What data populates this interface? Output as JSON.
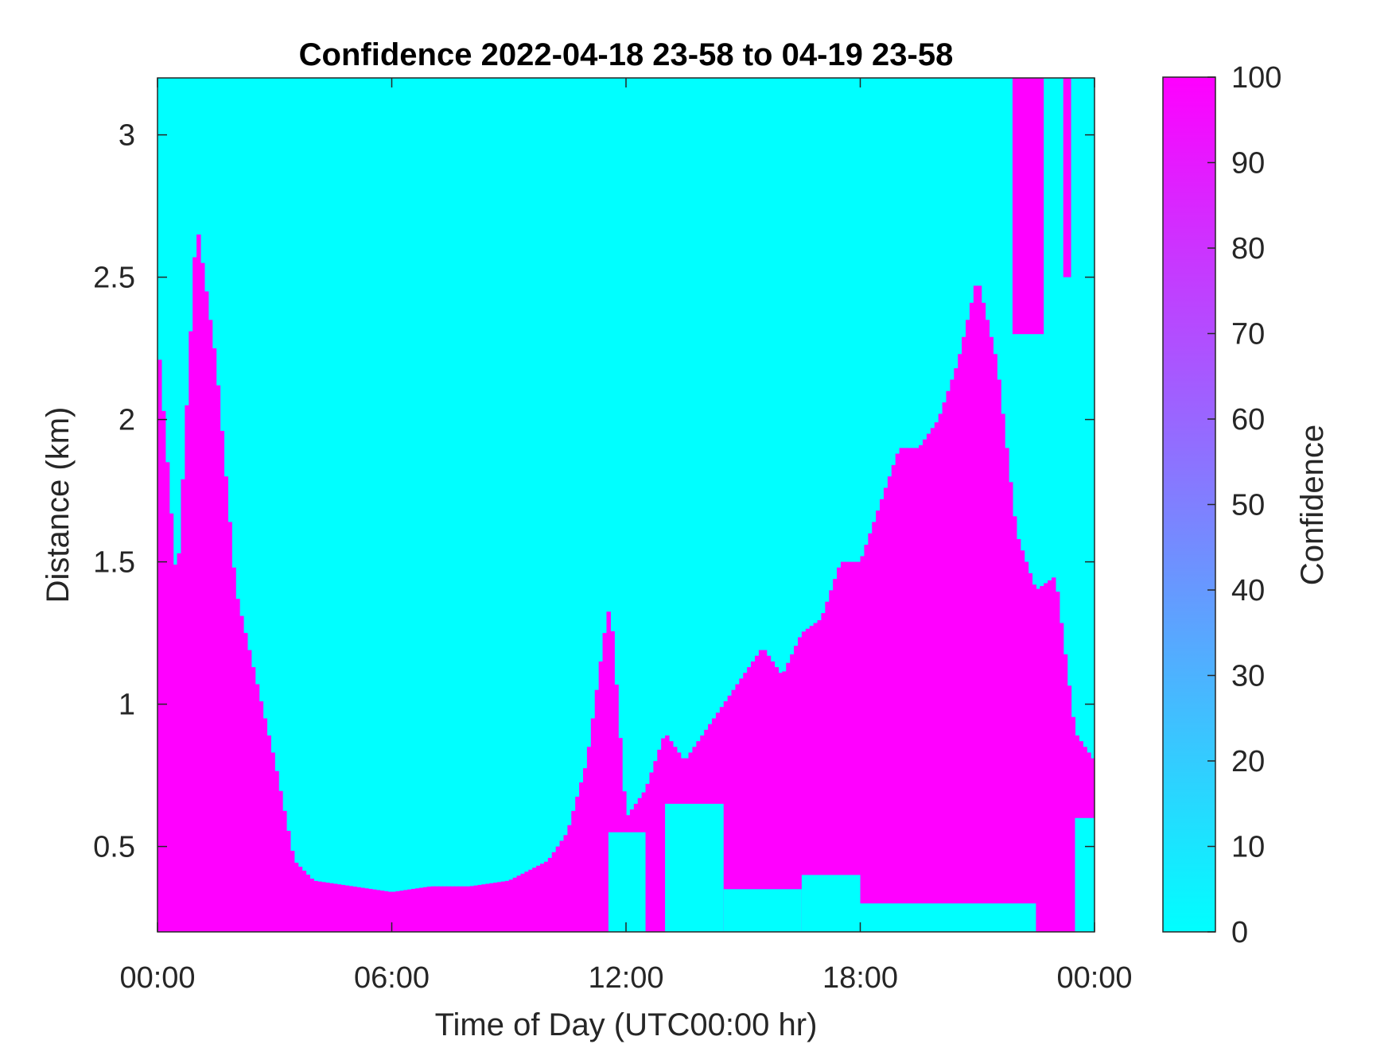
{
  "chart_data": {
    "type": "heatmap",
    "title": "Confidence 2022-04-18 23-58 to 04-19 23-58",
    "xlabel": "Time of Day (UTC00:00 hr)",
    "ylabel": "Distance (km)",
    "xlim": [
      0,
      24
    ],
    "ylim": [
      0.2,
      3.2
    ],
    "x_ticks": [
      {
        "value": 0,
        "label": "00:00"
      },
      {
        "value": 6,
        "label": "06:00"
      },
      {
        "value": 12,
        "label": "12:00"
      },
      {
        "value": 18,
        "label": "18:00"
      },
      {
        "value": 24,
        "label": "00:00"
      }
    ],
    "y_ticks": [
      {
        "value": 0.5,
        "label": "0.5"
      },
      {
        "value": 1,
        "label": "1"
      },
      {
        "value": 1.5,
        "label": "1.5"
      },
      {
        "value": 2,
        "label": "2"
      },
      {
        "value": 2.5,
        "label": "2.5"
      },
      {
        "value": 3,
        "label": "3"
      }
    ],
    "colorbar": {
      "label": "Confidence",
      "range": [
        0,
        100
      ],
      "ticks": [
        0,
        10,
        20,
        30,
        40,
        50,
        60,
        70,
        80,
        90,
        100
      ],
      "low_color": "#00ffff",
      "high_color": "#ff00ff"
    },
    "high_confidence_top_km": [
      [
        0.0,
        2.3
      ],
      [
        0.5,
        1.4
      ],
      [
        1.0,
        2.7
      ],
      [
        1.5,
        2.2
      ],
      [
        2.0,
        1.4
      ],
      [
        2.5,
        1.1
      ],
      [
        3.0,
        0.8
      ],
      [
        3.5,
        0.45
      ],
      [
        4.0,
        0.38
      ],
      [
        5.0,
        0.36
      ],
      [
        6.0,
        0.34
      ],
      [
        7.0,
        0.36
      ],
      [
        8.0,
        0.36
      ],
      [
        9.0,
        0.38
      ],
      [
        10.0,
        0.45
      ],
      [
        10.5,
        0.55
      ],
      [
        11.0,
        0.8
      ],
      [
        11.5,
        1.3
      ],
      [
        11.6,
        1.35
      ],
      [
        12.0,
        0.6
      ],
      [
        12.5,
        0.7
      ],
      [
        13.0,
        0.9
      ],
      [
        13.5,
        0.8
      ],
      [
        14.0,
        0.9
      ],
      [
        14.5,
        1.0
      ],
      [
        15.0,
        1.1
      ],
      [
        15.5,
        1.2
      ],
      [
        16.0,
        1.1
      ],
      [
        16.5,
        1.25
      ],
      [
        17.0,
        1.3
      ],
      [
        17.5,
        1.5
      ],
      [
        18.0,
        1.5
      ],
      [
        18.5,
        1.7
      ],
      [
        19.0,
        1.9
      ],
      [
        19.5,
        1.9
      ],
      [
        20.0,
        2.0
      ],
      [
        20.5,
        2.2
      ],
      [
        21.0,
        2.5
      ],
      [
        21.5,
        2.2
      ],
      [
        22.0,
        1.6
      ],
      [
        22.5,
        1.4
      ],
      [
        23.0,
        1.45
      ],
      [
        23.5,
        0.9
      ],
      [
        24.0,
        0.8
      ]
    ],
    "high_confidence_gaps": [
      {
        "x_start": 11.55,
        "x_end": 12.5,
        "y_start": 0.2,
        "y_end": 0.55
      },
      {
        "x_start": 13.0,
        "x_end": 14.5,
        "y_start": 0.2,
        "y_end": 0.65
      },
      {
        "x_start": 14.5,
        "x_end": 16.5,
        "y_start": 0.2,
        "y_end": 0.35
      },
      {
        "x_start": 16.5,
        "x_end": 18.0,
        "y_start": 0.2,
        "y_end": 0.4
      },
      {
        "x_start": 18.0,
        "x_end": 22.5,
        "y_start": 0.2,
        "y_end": 0.3
      },
      {
        "x_start": 23.5,
        "x_end": 24.0,
        "y_start": 0.2,
        "y_end": 0.6
      }
    ],
    "high_confidence_top_streaks": [
      {
        "x_start": 21.9,
        "x_end": 22.7,
        "y_start": 2.3,
        "y_end": 3.2
      },
      {
        "x_start": 23.2,
        "x_end": 23.4,
        "y_start": 2.5,
        "y_end": 3.2
      }
    ]
  }
}
